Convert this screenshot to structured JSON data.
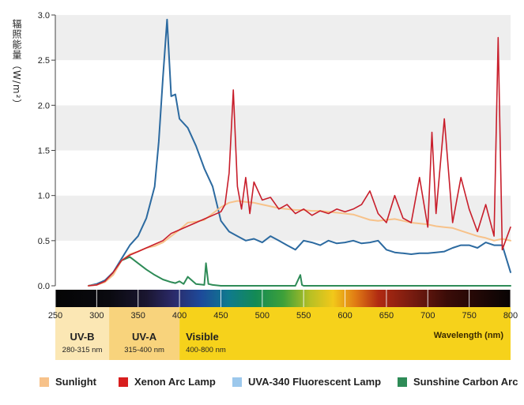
{
  "chart_data": {
    "type": "line",
    "ylabel": "辐照能量（W/m²）",
    "ylim": [
      0,
      3.0
    ],
    "y_ticks": [
      "0.0",
      "0.5",
      "1.0",
      "1.5",
      "2.0",
      "2.5",
      "3.0"
    ],
    "xlim": [
      250,
      800
    ],
    "x_ticks": [
      "250",
      "300",
      "350",
      "400",
      "450",
      "500",
      "550",
      "600",
      "650",
      "700",
      "750",
      "800"
    ],
    "x_axis_title": "Wavelength (nm)",
    "bands": [
      {
        "name": "UV-B",
        "range_label": "280-315 nm",
        "from": 250,
        "to": 315,
        "color": "#fbe7b4"
      },
      {
        "name": "UV-A",
        "range_label": "315-400 nm",
        "from": 315,
        "to": 400,
        "color": "#f8d37c"
      },
      {
        "name": "Visible",
        "range_label": "400-800 nm",
        "from": 400,
        "to": 800,
        "color": "#f6d21b"
      }
    ],
    "series": [
      {
        "name": "Sunlight",
        "color": "#f7c28a",
        "x": [
          290,
          300,
          310,
          320,
          330,
          340,
          350,
          360,
          370,
          380,
          390,
          400,
          410,
          420,
          430,
          440,
          450,
          460,
          470,
          480,
          490,
          500,
          510,
          520,
          530,
          540,
          550,
          560,
          570,
          580,
          590,
          600,
          610,
          620,
          630,
          640,
          650,
          660,
          670,
          680,
          690,
          700,
          710,
          720,
          730,
          740,
          750,
          760,
          770,
          780,
          790,
          800
        ],
        "values": [
          0.0,
          0.01,
          0.04,
          0.12,
          0.28,
          0.35,
          0.38,
          0.42,
          0.44,
          0.48,
          0.55,
          0.62,
          0.7,
          0.71,
          0.73,
          0.8,
          0.87,
          0.92,
          0.94,
          0.93,
          0.92,
          0.9,
          0.88,
          0.86,
          0.85,
          0.84,
          0.84,
          0.83,
          0.83,
          0.82,
          0.81,
          0.8,
          0.79,
          0.76,
          0.73,
          0.72,
          0.73,
          0.74,
          0.72,
          0.7,
          0.69,
          0.68,
          0.66,
          0.65,
          0.64,
          0.61,
          0.58,
          0.55,
          0.53,
          0.5,
          0.52,
          0.5
        ]
      },
      {
        "name": "Xenon Arc Lamp",
        "color": "#c81e2b",
        "x": [
          290,
          300,
          310,
          320,
          330,
          340,
          350,
          360,
          370,
          380,
          390,
          400,
          410,
          420,
          430,
          440,
          450,
          455,
          460,
          465,
          470,
          475,
          480,
          485,
          490,
          500,
          510,
          520,
          530,
          540,
          550,
          560,
          570,
          580,
          590,
          600,
          610,
          620,
          630,
          640,
          650,
          660,
          670,
          680,
          690,
          700,
          705,
          710,
          720,
          730,
          740,
          750,
          760,
          770,
          780,
          785,
          790,
          800
        ],
        "values": [
          0.0,
          0.01,
          0.05,
          0.15,
          0.28,
          0.34,
          0.38,
          0.42,
          0.46,
          0.5,
          0.58,
          0.62,
          0.66,
          0.7,
          0.74,
          0.78,
          0.82,
          0.9,
          1.25,
          2.17,
          1.1,
          0.85,
          1.2,
          0.8,
          1.15,
          0.95,
          0.98,
          0.85,
          0.9,
          0.8,
          0.85,
          0.78,
          0.83,
          0.8,
          0.85,
          0.82,
          0.85,
          0.9,
          1.05,
          0.8,
          0.7,
          1.0,
          0.75,
          0.7,
          1.2,
          0.65,
          1.7,
          0.8,
          1.85,
          0.7,
          1.2,
          0.85,
          0.6,
          0.9,
          0.55,
          2.75,
          0.4,
          0.65
        ]
      },
      {
        "name": "UVA-340 Fluorescent Lamp",
        "color": "#2c6aa0",
        "x": [
          290,
          300,
          310,
          320,
          330,
          340,
          350,
          360,
          370,
          375,
          380,
          385,
          390,
          395,
          400,
          410,
          420,
          430,
          440,
          450,
          460,
          470,
          480,
          490,
          500,
          510,
          520,
          530,
          540,
          550,
          560,
          570,
          580,
          590,
          600,
          610,
          620,
          630,
          640,
          650,
          660,
          670,
          680,
          690,
          700,
          710,
          720,
          730,
          740,
          750,
          760,
          770,
          780,
          790,
          800
        ],
        "values": [
          0.0,
          0.02,
          0.06,
          0.15,
          0.3,
          0.45,
          0.55,
          0.75,
          1.1,
          1.6,
          2.3,
          2.95,
          2.1,
          2.12,
          1.85,
          1.75,
          1.55,
          1.3,
          1.1,
          0.72,
          0.6,
          0.55,
          0.5,
          0.52,
          0.48,
          0.55,
          0.5,
          0.45,
          0.4,
          0.5,
          0.48,
          0.45,
          0.5,
          0.47,
          0.48,
          0.5,
          0.47,
          0.48,
          0.5,
          0.4,
          0.37,
          0.36,
          0.35,
          0.36,
          0.36,
          0.37,
          0.38,
          0.42,
          0.45,
          0.45,
          0.42,
          0.48,
          0.45,
          0.45,
          0.15
        ]
      },
      {
        "name": "Sunshine Carbon Arc",
        "color": "#2e8b57",
        "x": [
          290,
          300,
          310,
          320,
          330,
          340,
          350,
          360,
          370,
          380,
          390,
          395,
          400,
          405,
          410,
          420,
          430,
          432,
          435,
          440,
          450,
          460,
          480,
          500,
          540,
          546,
          548,
          550,
          560,
          600,
          650,
          700,
          800
        ],
        "values": [
          0.0,
          0.02,
          0.05,
          0.15,
          0.28,
          0.32,
          0.25,
          0.18,
          0.12,
          0.07,
          0.04,
          0.03,
          0.05,
          0.02,
          0.1,
          0.02,
          0.01,
          0.25,
          0.02,
          0.01,
          0.0,
          0.0,
          0.0,
          0.0,
          0.0,
          0.12,
          0.01,
          0.0,
          0.0,
          0.0,
          0.0,
          0.0,
          0.0
        ]
      }
    ]
  },
  "legend": [
    {
      "label": "Sunlight",
      "color": "#f7c28a"
    },
    {
      "label": "Xenon Arc Lamp",
      "color": "#d81e1e"
    },
    {
      "label": "UVA-340 Fluorescent Lamp",
      "color": "#9cc8ec"
    },
    {
      "label": "Sunshine Carbon Arc",
      "color": "#2e8b57"
    }
  ]
}
